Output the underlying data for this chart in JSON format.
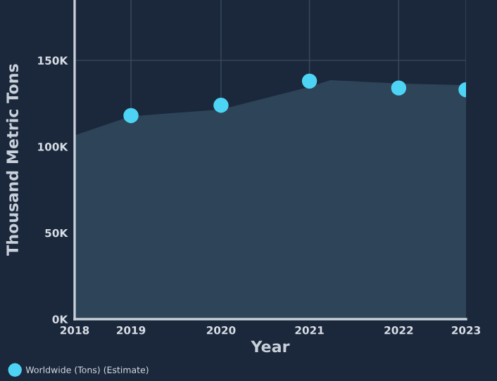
{
  "chart_data": {
    "type": "area",
    "xlabel": "Year",
    "ylabel": "Thousand Metric Tons",
    "series": [
      {
        "color": "#2e4459",
        "x": [
          2018,
          2018.72,
          2019.87,
          2021.0,
          2021.27,
          2022.14,
          2023
        ],
        "values": [
          106000,
          117000,
          121000,
          134000,
          138000,
          136000,
          135000
        ]
      },
      {
        "type": "scatter",
        "marker": "circle",
        "name": "Worldwide (Tons) (Estimate)",
        "color": "#4dd4f5",
        "x": [
          2018.72,
          2019.87,
          2021.0,
          2022.14,
          2023
        ],
        "values": [
          118000,
          124000,
          138000,
          134000,
          133000
        ]
      }
    ],
    "xlim": [
      2018,
      2023
    ],
    "xticks": [
      2018,
      {
        "value": 2018.72,
        "label": "2019"
      },
      {
        "value": 2019.87,
        "label": "2020"
      },
      {
        "value": 2021.0,
        "label": "2021"
      },
      {
        "value": 2022.14,
        "label": "2022"
      },
      2023
    ],
    "ylim": [
      0,
      185000
    ],
    "yticks": [
      {
        "value": 0,
        "label": "0K"
      },
      {
        "value": 50000,
        "label": "50K"
      },
      {
        "value": 100000,
        "label": "100K"
      },
      {
        "value": 150000,
        "label": "150K"
      }
    ],
    "grid": true,
    "legend": "bottom left"
  }
}
